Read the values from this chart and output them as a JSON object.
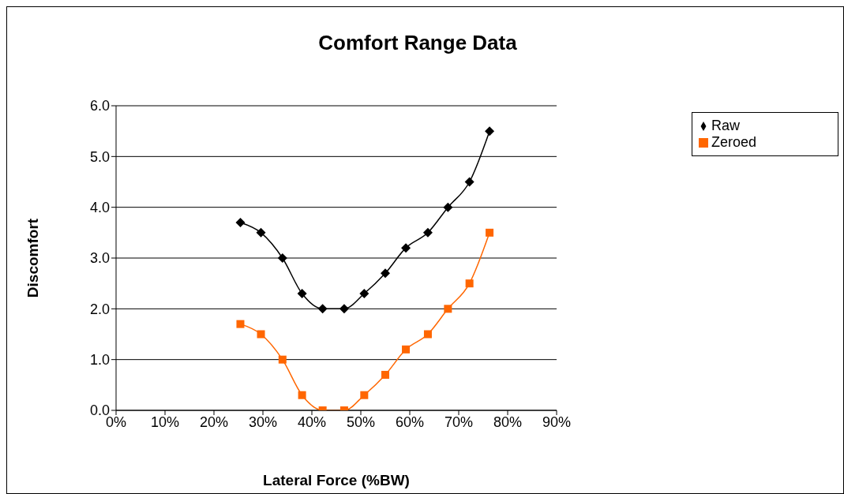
{
  "chart_data": {
    "type": "line",
    "title": "Comfort Range Data",
    "xlabel": "Lateral Force (%BW)",
    "ylabel": "Discomfort",
    "x": [
      25.4,
      29.6,
      34.0,
      38.0,
      42.2,
      46.6,
      50.7,
      55.0,
      59.2,
      63.7,
      67.8,
      72.2,
      76.3
    ],
    "series": [
      {
        "name": "Raw",
        "color": "#000000",
        "marker": "diamond",
        "values": [
          3.7,
          3.5,
          3.0,
          2.3,
          2.0,
          2.0,
          2.3,
          2.7,
          3.2,
          3.5,
          4.0,
          4.5,
          5.5
        ]
      },
      {
        "name": "Zeroed",
        "color": "#ff6600",
        "marker": "square",
        "values": [
          1.7,
          1.5,
          1.0,
          0.3,
          0.0,
          0.0,
          0.3,
          0.7,
          1.2,
          1.5,
          2.0,
          2.5,
          3.5
        ]
      }
    ],
    "xlim": [
      0,
      90
    ],
    "xticks": [
      {
        "value": 0,
        "label": "0%"
      },
      {
        "value": 10,
        "label": "10%"
      },
      {
        "value": 20,
        "label": "20%"
      },
      {
        "value": 30,
        "label": "30%"
      },
      {
        "value": 40,
        "label": "40%"
      },
      {
        "value": 50,
        "label": "50%"
      },
      {
        "value": 60,
        "label": "60%"
      },
      {
        "value": 70,
        "label": "70%"
      },
      {
        "value": 80,
        "label": "80%"
      },
      {
        "value": 90,
        "label": "90%"
      }
    ],
    "ylim": [
      0,
      6
    ],
    "yticks": [
      {
        "value": 0,
        "label": "0.0"
      },
      {
        "value": 1,
        "label": "1.0"
      },
      {
        "value": 2,
        "label": "2.0"
      },
      {
        "value": 3,
        "label": "3.0"
      },
      {
        "value": 4,
        "label": "4.0"
      },
      {
        "value": 5,
        "label": "5.0"
      },
      {
        "value": 6,
        "label": "6.0"
      }
    ],
    "grid": "y",
    "legend": "right",
    "line_style": "solid"
  }
}
